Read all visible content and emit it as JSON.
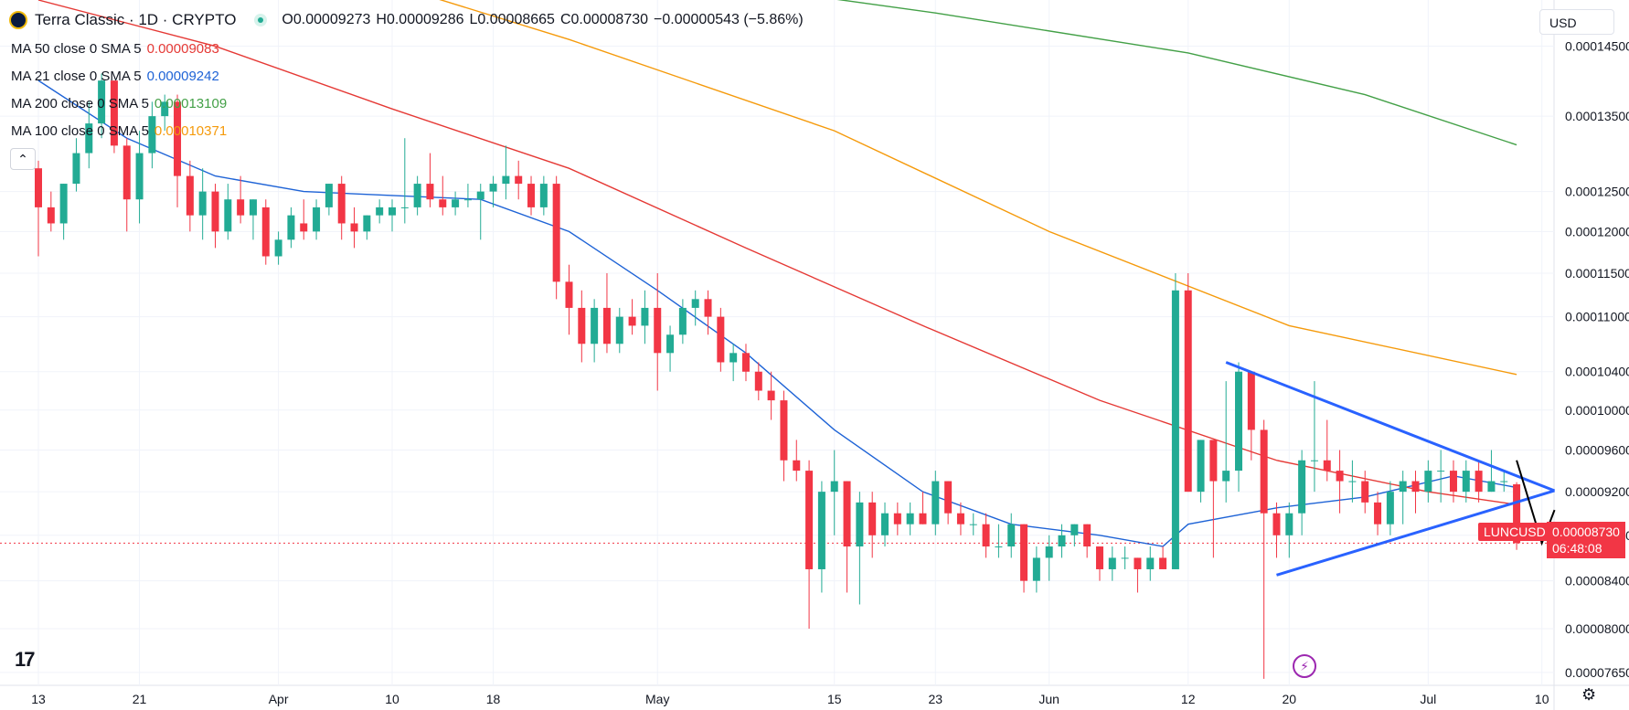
{
  "header": {
    "title": "Terra Classic · 1D · CRYPTO",
    "open": "O0.00009273",
    "high": "H0.00009286",
    "low": "L0.00008665",
    "close": "C0.00008730",
    "change": "−0.00000543 (−5.86%)"
  },
  "indicators": [
    {
      "label": "MA 50 close 0 SMA 5",
      "value": "0.00009083",
      "color": "#e53935"
    },
    {
      "label": "MA 21 close 0 SMA 5",
      "value": "0.00009242",
      "color": "#1e63d6"
    },
    {
      "label": "MA 200 close 0 SMA 5",
      "value": "0.00013109",
      "color": "#43a047"
    },
    {
      "label": "MA 100 close 0 SMA 5",
      "value": "0.00010371",
      "color": "#f59a0b"
    }
  ],
  "currency": "USD",
  "price_tag": {
    "symbol": "LUNCUSD",
    "price": "0.00008730",
    "countdown": "06:48:08"
  },
  "icons": {
    "collapse": "chevron-up-icon",
    "replay": "lightning-icon",
    "settings": "gear-icon",
    "logo": "tradingview-logo"
  },
  "colors": {
    "up": "#22ab94",
    "down": "#f23645",
    "trendline": "#2962ff",
    "arrow": "#000000"
  },
  "chart_data": {
    "type": "candlestick",
    "title": "Terra Classic · 1D · CRYPTO",
    "y_scale": "log",
    "y_ticks": [
      "0.00014500",
      "0.00013500",
      "0.00012500",
      "0.00012000",
      "0.00011500",
      "0.00011000",
      "0.00010400",
      "0.00010000",
      "0.00009600",
      "0.00009200",
      "0.00008800",
      "0.00008400",
      "0.00008000",
      "0.00007650"
    ],
    "x_tick_labels": [
      "13",
      "21",
      "Apr",
      "10",
      "18",
      "May",
      "15",
      "23",
      "Jun",
      "12",
      "20",
      "Jul",
      "10"
    ],
    "x_tick_dates": [
      "2023-03-13",
      "2023-03-21",
      "2023-04-01",
      "2023-04-10",
      "2023-04-18",
      "2023-05-01",
      "2023-05-15",
      "2023-05-23",
      "2023-06-01",
      "2023-06-12",
      "2023-06-20",
      "2023-07-01",
      "2023-07-10"
    ],
    "x_range": [
      "2023-03-13",
      "2023-07-14"
    ],
    "y_range": [
      7.55e-05,
      0.000152
    ],
    "last_price": 8.73e-05,
    "ohlc_columns": [
      "date",
      "open",
      "high",
      "low",
      "close"
    ],
    "candles": [
      [
        "2023-03-13",
        0.000128,
        0.000129,
        0.000117,
        0.000123
      ],
      [
        "2023-03-14",
        0.000123,
        0.000125,
        0.00012,
        0.000121
      ],
      [
        "2023-03-15",
        0.000121,
        0.000126,
        0.000119,
        0.000126
      ],
      [
        "2023-03-16",
        0.000126,
        0.000132,
        0.000125,
        0.00013
      ],
      [
        "2023-03-17",
        0.00013,
        0.000137,
        0.000128,
        0.000134
      ],
      [
        "2023-03-18",
        0.000134,
        0.000141,
        0.000132,
        0.00014
      ],
      [
        "2023-03-19",
        0.00014,
        0.00014,
        0.00013,
        0.000131
      ],
      [
        "2023-03-20",
        0.000131,
        0.000132,
        0.00012,
        0.000124
      ],
      [
        "2023-03-21",
        0.000124,
        0.000133,
        0.000121,
        0.00013
      ],
      [
        "2023-03-22",
        0.00013,
        0.000137,
        0.000128,
        0.000135
      ],
      [
        "2023-03-23",
        0.000135,
        0.000138,
        0.000133,
        0.000137
      ],
      [
        "2023-03-24",
        0.000137,
        0.000138,
        0.000123,
        0.000127
      ],
      [
        "2023-03-25",
        0.000127,
        0.000129,
        0.00012,
        0.000122
      ],
      [
        "2023-03-26",
        0.000122,
        0.000128,
        0.000119,
        0.000125
      ],
      [
        "2023-03-27",
        0.000125,
        0.000126,
        0.000118,
        0.00012
      ],
      [
        "2023-03-28",
        0.00012,
        0.000126,
        0.000119,
        0.000124
      ],
      [
        "2023-03-29",
        0.000124,
        0.000127,
        0.000121,
        0.000122
      ],
      [
        "2023-03-30",
        0.000122,
        0.000124,
        0.000119,
        0.000124
      ],
      [
        "2023-03-31",
        0.000123,
        0.000124,
        0.000116,
        0.000117
      ],
      [
        "2023-04-01",
        0.000117,
        0.00012,
        0.000116,
        0.000119
      ],
      [
        "2023-04-02",
        0.000119,
        0.000123,
        0.000118,
        0.000122
      ],
      [
        "2023-04-03",
        0.000121,
        0.000124,
        0.000119,
        0.00012
      ],
      [
        "2023-04-04",
        0.00012,
        0.000124,
        0.000119,
        0.000123
      ],
      [
        "2023-04-05",
        0.000123,
        0.000126,
        0.000122,
        0.000126
      ],
      [
        "2023-04-06",
        0.000126,
        0.000127,
        0.000119,
        0.000121
      ],
      [
        "2023-04-07",
        0.000121,
        0.000123,
        0.000118,
        0.00012
      ],
      [
        "2023-04-08",
        0.00012,
        0.000122,
        0.000119,
        0.000122
      ],
      [
        "2023-04-09",
        0.000122,
        0.000124,
        0.000121,
        0.000123
      ],
      [
        "2023-04-10",
        0.000122,
        0.000124,
        0.00012,
        0.000123
      ],
      [
        "2023-04-11",
        0.000123,
        0.000132,
        0.000121,
        0.000123
      ],
      [
        "2023-04-12",
        0.000123,
        0.000127,
        0.000122,
        0.000126
      ],
      [
        "2023-04-13",
        0.000126,
        0.00013,
        0.000123,
        0.000124
      ],
      [
        "2023-04-14",
        0.000124,
        0.000127,
        0.000122,
        0.000123
      ],
      [
        "2023-04-15",
        0.000123,
        0.000125,
        0.000122,
        0.000124
      ],
      [
        "2023-04-16",
        0.000124,
        0.000126,
        0.000123,
        0.000124
      ],
      [
        "2023-04-17",
        0.000124,
        0.000126,
        0.000119,
        0.000125
      ],
      [
        "2023-04-18",
        0.000125,
        0.000127,
        0.000123,
        0.000126
      ],
      [
        "2023-04-19",
        0.000126,
        0.000131,
        0.000124,
        0.000127
      ],
      [
        "2023-04-20",
        0.000127,
        0.000129,
        0.000124,
        0.000126
      ],
      [
        "2023-04-21",
        0.000126,
        0.000127,
        0.000122,
        0.000123
      ],
      [
        "2023-04-22",
        0.000123,
        0.000127,
        0.000122,
        0.000126
      ],
      [
        "2023-04-23",
        0.000126,
        0.000127,
        0.000112,
        0.000114
      ],
      [
        "2023-04-24",
        0.000114,
        0.000116,
        0.000108,
        0.000111
      ],
      [
        "2023-04-25",
        0.000111,
        0.000113,
        0.000105,
        0.000107
      ],
      [
        "2023-04-26",
        0.000107,
        0.000112,
        0.000105,
        0.000111
      ],
      [
        "2023-04-27",
        0.000111,
        0.000115,
        0.000106,
        0.000107
      ],
      [
        "2023-04-28",
        0.000107,
        0.000111,
        0.000106,
        0.00011
      ],
      [
        "2023-04-29",
        0.00011,
        0.000112,
        0.000108,
        0.000109
      ],
      [
        "2023-04-30",
        0.000109,
        0.000113,
        0.000107,
        0.000111
      ],
      [
        "2023-05-01",
        0.000111,
        0.000115,
        0.000102,
        0.000106
      ],
      [
        "2023-05-02",
        0.000106,
        0.000109,
        0.000104,
        0.000108
      ],
      [
        "2023-05-03",
        0.000108,
        0.000112,
        0.000107,
        0.000111
      ],
      [
        "2023-05-04",
        0.000111,
        0.000113,
        0.000109,
        0.000112
      ],
      [
        "2023-05-05",
        0.000112,
        0.000113,
        0.000108,
        0.00011
      ],
      [
        "2023-05-06",
        0.00011,
        0.000111,
        0.000104,
        0.000105
      ],
      [
        "2023-05-07",
        0.000105,
        0.000107,
        0.000103,
        0.000106
      ],
      [
        "2023-05-08",
        0.000106,
        0.000107,
        0.000103,
        0.000104
      ],
      [
        "2023-05-09",
        0.000104,
        0.000105,
        0.000101,
        0.000102
      ],
      [
        "2023-05-10",
        0.000102,
        0.000104,
        9.9e-05,
        0.000101
      ],
      [
        "2023-05-11",
        0.000101,
        0.000102,
        9.3e-05,
        9.5e-05
      ],
      [
        "2023-05-12",
        9.5e-05,
        9.7e-05,
        9.3e-05,
        9.4e-05
      ],
      [
        "2023-05-13",
        9.4e-05,
        9.5e-05,
        8e-05,
        8.5e-05
      ],
      [
        "2023-05-14",
        8.5e-05,
        9.3e-05,
        8.3e-05,
        9.2e-05
      ],
      [
        "2023-05-15",
        9.2e-05,
        9.6e-05,
        8.8e-05,
        9.3e-05
      ],
      [
        "2023-05-16",
        9.3e-05,
        9.3e-05,
        8.3e-05,
        8.7e-05
      ],
      [
        "2023-05-17",
        8.7e-05,
        9.2e-05,
        8.2e-05,
        9.1e-05
      ],
      [
        "2023-05-18",
        9.1e-05,
        9.2e-05,
        8.6e-05,
        8.8e-05
      ],
      [
        "2023-05-19",
        8.8e-05,
        9.1e-05,
        8.7e-05,
        9e-05
      ],
      [
        "2023-05-20",
        9e-05,
        9.1e-05,
        8.8e-05,
        8.9e-05
      ],
      [
        "2023-05-21",
        8.9e-05,
        9.1e-05,
        8.8e-05,
        9e-05
      ],
      [
        "2023-05-22",
        9e-05,
        9.2e-05,
        8.9e-05,
        8.9e-05
      ],
      [
        "2023-05-23",
        8.9e-05,
        9.4e-05,
        8.8e-05,
        9.3e-05
      ],
      [
        "2023-05-24",
        9.3e-05,
        9.3e-05,
        8.9e-05,
        9e-05
      ],
      [
        "2023-05-25",
        9e-05,
        9.1e-05,
        8.8e-05,
        8.9e-05
      ],
      [
        "2023-05-26",
        8.9e-05,
        9e-05,
        8.8e-05,
        8.9e-05
      ],
      [
        "2023-05-27",
        8.9e-05,
        9e-05,
        8.6e-05,
        8.7e-05
      ],
      [
        "2023-05-28",
        8.7e-05,
        8.9e-05,
        8.6e-05,
        8.7e-05
      ],
      [
        "2023-05-29",
        8.7e-05,
        9e-05,
        8.6e-05,
        8.9e-05
      ],
      [
        "2023-05-30",
        8.9e-05,
        8.9e-05,
        8.3e-05,
        8.4e-05
      ],
      [
        "2023-05-31",
        8.4e-05,
        8.7e-05,
        8.3e-05,
        8.6e-05
      ],
      [
        "2023-06-01",
        8.6e-05,
        8.8e-05,
        8.4e-05,
        8.7e-05
      ],
      [
        "2023-06-02",
        8.7e-05,
        8.9e-05,
        8.6e-05,
        8.8e-05
      ],
      [
        "2023-06-03",
        8.8e-05,
        8.9e-05,
        8.7e-05,
        8.9e-05
      ],
      [
        "2023-06-04",
        8.9e-05,
        8.9e-05,
        8.6e-05,
        8.7e-05
      ],
      [
        "2023-06-05",
        8.7e-05,
        8.7e-05,
        8.4e-05,
        8.5e-05
      ],
      [
        "2023-06-06",
        8.5e-05,
        8.7e-05,
        8.4e-05,
        8.6e-05
      ],
      [
        "2023-06-07",
        8.6e-05,
        8.7e-05,
        8.5e-05,
        8.6e-05
      ],
      [
        "2023-06-08",
        8.6e-05,
        8.6e-05,
        8.3e-05,
        8.5e-05
      ],
      [
        "2023-06-09",
        8.5e-05,
        8.7e-05,
        8.4e-05,
        8.6e-05
      ],
      [
        "2023-06-10",
        8.6e-05,
        8.7e-05,
        8.5e-05,
        8.5e-05
      ],
      [
        "2023-06-11",
        8.5e-05,
        0.000115,
        8.5e-05,
        0.000113
      ],
      [
        "2023-06-12",
        0.000113,
        0.000115,
        9.2e-05,
        9.2e-05
      ],
      [
        "2023-06-13",
        9.2e-05,
        9.7e-05,
        9.1e-05,
        9.7e-05
      ],
      [
        "2023-06-14",
        9.7e-05,
        9.7e-05,
        8.6e-05,
        9.3e-05
      ],
      [
        "2023-06-15",
        9.3e-05,
        0.000103,
        9.1e-05,
        9.4e-05
      ],
      [
        "2023-06-16",
        9.4e-05,
        0.000105,
        9.2e-05,
        0.000104
      ],
      [
        "2023-06-17",
        0.000104,
        0.000104,
        9.5e-05,
        9.8e-05
      ],
      [
        "2023-06-18",
        9.8e-05,
        9.9e-05,
        7.6e-05,
        9e-05
      ],
      [
        "2023-06-19",
        9e-05,
        9.1e-05,
        8.6e-05,
        8.8e-05
      ],
      [
        "2023-06-20",
        8.8e-05,
        9.1e-05,
        8.6e-05,
        9e-05
      ],
      [
        "2023-06-21",
        9e-05,
        9.6e-05,
        8.8e-05,
        9.5e-05
      ],
      [
        "2023-06-22",
        9.5e-05,
        0.000103,
        9.2e-05,
        9.5e-05
      ],
      [
        "2023-06-23",
        9.5e-05,
        9.9e-05,
        9.3e-05,
        9.4e-05
      ],
      [
        "2023-06-24",
        9.4e-05,
        9.6e-05,
        9e-05,
        9.3e-05
      ],
      [
        "2023-06-25",
        9.3e-05,
        9.5e-05,
        9.1e-05,
        9.3e-05
      ],
      [
        "2023-06-26",
        9.3e-05,
        9.4e-05,
        9e-05,
        9.1e-05
      ],
      [
        "2023-06-27",
        9.1e-05,
        9.2e-05,
        8.8e-05,
        8.9e-05
      ],
      [
        "2023-06-28",
        8.9e-05,
        9.3e-05,
        8.8e-05,
        9.2e-05
      ],
      [
        "2023-06-29",
        9.2e-05,
        9.4e-05,
        8.9e-05,
        9.3e-05
      ],
      [
        "2023-06-30",
        9.3e-05,
        9.4e-05,
        9e-05,
        9.2e-05
      ],
      [
        "2023-07-01",
        9.2e-05,
        9.5e-05,
        9.1e-05,
        9.4e-05
      ],
      [
        "2023-07-02",
        9.4e-05,
        9.6e-05,
        9.1e-05,
        9.4e-05
      ],
      [
        "2023-07-03",
        9.4e-05,
        9.5e-05,
        9.1e-05,
        9.2e-05
      ],
      [
        "2023-07-04",
        9.2e-05,
        9.5e-05,
        9.1e-05,
        9.4e-05
      ],
      [
        "2023-07-05",
        9.4e-05,
        9.5e-05,
        9.1e-05,
        9.2e-05
      ],
      [
        "2023-07-06",
        9.2e-05,
        9.6e-05,
        9.2e-05,
        9.3e-05
      ],
      [
        "2023-07-07",
        9.3e-05,
        9.4e-05,
        9.2e-05,
        9.3e-05
      ],
      [
        "2023-07-08",
        9.27e-05,
        9.29e-05,
        8.67e-05,
        8.73e-05
      ]
    ],
    "moving_averages": [
      {
        "name": "MA 21",
        "color": "#1e63d6",
        "points": [
          [
            "2023-03-13",
            0.00014
          ],
          [
            "2023-03-20",
            0.000132
          ],
          [
            "2023-03-27",
            0.000127
          ],
          [
            "2023-04-03",
            0.000125
          ],
          [
            "2023-04-10",
            0.0001245
          ],
          [
            "2023-04-17",
            0.000124
          ],
          [
            "2023-04-24",
            0.00012
          ],
          [
            "2023-05-01",
            0.000113
          ],
          [
            "2023-05-08",
            0.000106
          ],
          [
            "2023-05-15",
            9.8e-05
          ],
          [
            "2023-05-22",
            9.2e-05
          ],
          [
            "2023-05-29",
            8.9e-05
          ],
          [
            "2023-06-05",
            8.8e-05
          ],
          [
            "2023-06-10",
            8.7e-05
          ],
          [
            "2023-06-12",
            8.9e-05
          ],
          [
            "2023-06-19",
            9.05e-05
          ],
          [
            "2023-06-26",
            9.15e-05
          ],
          [
            "2023-07-03",
            9.35e-05
          ],
          [
            "2023-07-08",
            9.24e-05
          ]
        ]
      },
      {
        "name": "MA 50",
        "color": "#e53935",
        "points": [
          [
            "2023-03-13",
            0.000152
          ],
          [
            "2023-03-27",
            0.000145
          ],
          [
            "2023-04-10",
            0.000136
          ],
          [
            "2023-04-24",
            0.000128
          ],
          [
            "2023-05-08",
            0.000118
          ],
          [
            "2023-05-22",
            0.000109
          ],
          [
            "2023-06-05",
            0.000101
          ],
          [
            "2023-06-19",
            9.5e-05
          ],
          [
            "2023-07-01",
            9.2e-05
          ],
          [
            "2023-07-08",
            9.08e-05
          ]
        ]
      },
      {
        "name": "MA 100",
        "color": "#f59a0b",
        "points": [
          [
            "2023-03-13",
            0.00017
          ],
          [
            "2023-04-01",
            0.00016
          ],
          [
            "2023-04-24",
            0.000146
          ],
          [
            "2023-05-15",
            0.000133
          ],
          [
            "2023-06-01",
            0.00012
          ],
          [
            "2023-06-20",
            0.000109
          ],
          [
            "2023-07-08",
            0.0001037
          ]
        ]
      },
      {
        "name": "MA 200",
        "color": "#43a047",
        "points": [
          [
            "2023-05-01",
            0.000156
          ],
          [
            "2023-05-23",
            0.00015
          ],
          [
            "2023-06-12",
            0.000144
          ],
          [
            "2023-06-26",
            0.000138
          ],
          [
            "2023-07-08",
            0.0001311
          ]
        ]
      }
    ],
    "drawings": [
      {
        "type": "trendline",
        "color": "#2962ff",
        "from": [
          "2023-06-15",
          0.000105
        ],
        "to": [
          "2023-07-11",
          9.21e-05
        ]
      },
      {
        "type": "trendline",
        "color": "#2962ff",
        "from": [
          "2023-06-19",
          8.45e-05
        ],
        "to": [
          "2023-07-11",
          9.21e-05
        ]
      },
      {
        "type": "arrow",
        "color": "#000000",
        "points": [
          [
            "2023-07-08",
            9.5e-05
          ],
          [
            "2023-07-10",
            8.73e-05
          ],
          [
            "2023-07-11",
            9.03e-05
          ]
        ]
      }
    ]
  }
}
